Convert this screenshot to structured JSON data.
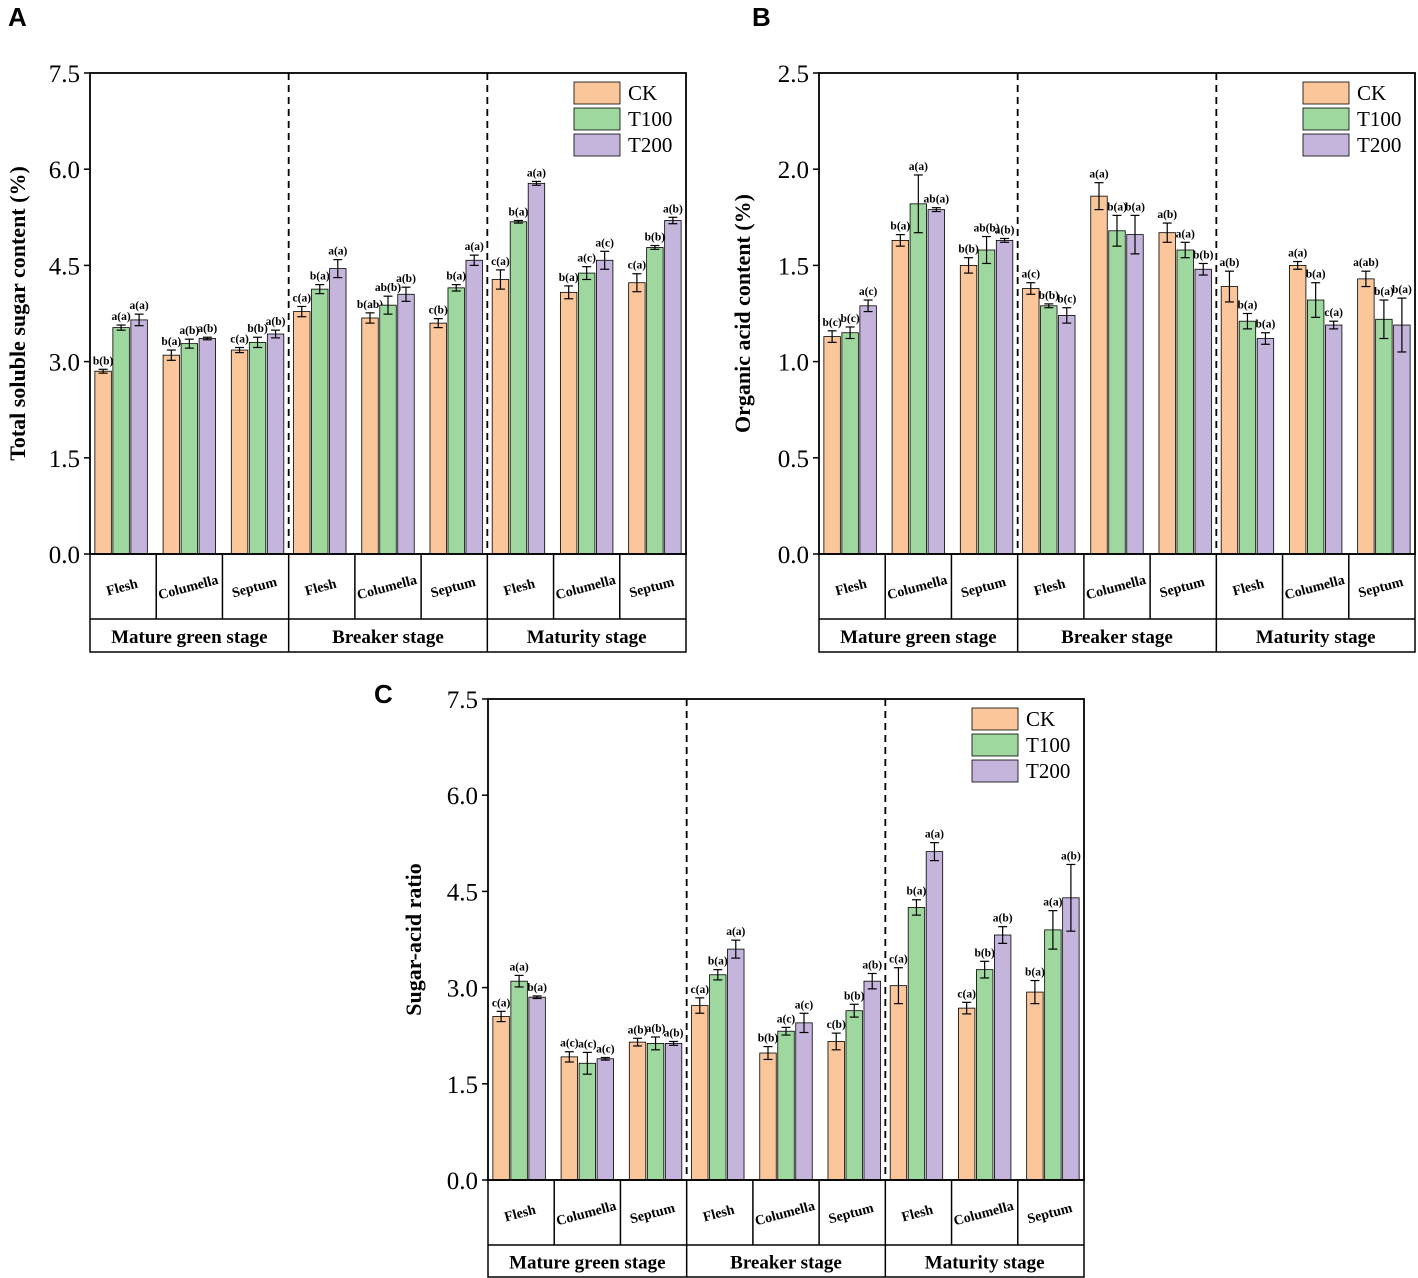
{
  "figure": {
    "colors": {
      "CK": "#fac69a",
      "T100": "#9fd89f",
      "T200": "#c5b5dd",
      "frame": "#000000"
    }
  },
  "chart_data": [
    {
      "panel": "A",
      "type": "bar",
      "ylabel": "Total soluble sugar content (%)",
      "ylim": [
        0,
        7.5
      ],
      "yticks": [
        "0.0",
        "1.5",
        "3.0",
        "4.5",
        "6.0",
        "7.5"
      ],
      "stages": [
        "Mature green stage",
        "Breaker stage",
        "Maturity stage"
      ],
      "tissues": [
        "Flesh",
        "Columella",
        "Septum"
      ],
      "legend": [
        "CK",
        "T100",
        "T200"
      ],
      "legend_position": "top-right",
      "series": [
        {
          "name": "CK",
          "values": [
            2.85,
            3.1,
            3.18,
            3.78,
            3.68,
            3.6,
            4.28,
            4.08,
            4.23
          ],
          "errors": [
            0.03,
            0.08,
            0.04,
            0.08,
            0.08,
            0.07,
            0.15,
            0.1,
            0.14
          ],
          "labels": [
            "b(b)",
            "b(a)",
            "c(a)",
            "c(a)",
            "b(ab)",
            "c(b)",
            "c(a)",
            "b(a)",
            "c(a)"
          ]
        },
        {
          "name": "T100",
          "values": [
            3.53,
            3.28,
            3.3,
            4.13,
            3.88,
            4.15,
            5.18,
            4.38,
            4.78
          ],
          "errors": [
            0.04,
            0.07,
            0.08,
            0.07,
            0.14,
            0.05,
            0.02,
            0.1,
            0.03
          ],
          "labels": [
            "a(a)",
            "a(b)",
            "b(b)",
            "b(a)",
            "ab(b)",
            "b(a)",
            "b(a)",
            "a(c)",
            "b(b)"
          ]
        },
        {
          "name": "T200",
          "values": [
            3.65,
            3.36,
            3.43,
            4.45,
            4.05,
            4.58,
            5.78,
            4.58,
            5.2
          ],
          "errors": [
            0.09,
            0.02,
            0.06,
            0.14,
            0.11,
            0.08,
            0.03,
            0.14,
            0.05
          ],
          "labels": [
            "a(a)",
            "a(b)",
            "a(b)",
            "a(a)",
            "a(b)",
            "a(a)",
            "a(a)",
            "a(c)",
            "a(b)"
          ]
        }
      ]
    },
    {
      "panel": "B",
      "type": "bar",
      "ylabel": "Organic acid content (%)",
      "ylim": [
        0,
        2.5
      ],
      "yticks": [
        "0.0",
        "0.5",
        "1.0",
        "1.5",
        "2.0",
        "2.5"
      ],
      "stages": [
        "Mature green stage",
        "Breaker stage",
        "Maturity stage"
      ],
      "tissues": [
        "Flesh",
        "Columella",
        "Septum"
      ],
      "legend": [
        "CK",
        "T100",
        "T200"
      ],
      "legend_position": "top-right",
      "series": [
        {
          "name": "CK",
          "values": [
            1.13,
            1.63,
            1.5,
            1.38,
            1.86,
            1.67,
            1.39,
            1.5,
            1.43
          ],
          "errors": [
            0.03,
            0.03,
            0.04,
            0.03,
            0.07,
            0.05,
            0.08,
            0.02,
            0.04
          ],
          "labels": [
            "b(c)",
            "b(a)",
            "b(b)",
            "a(c)",
            "a(a)",
            "a(b)",
            "a(b)",
            "a(a)",
            "a(ab)"
          ]
        },
        {
          "name": "T100",
          "values": [
            1.15,
            1.82,
            1.58,
            1.29,
            1.68,
            1.58,
            1.21,
            1.32,
            1.22
          ],
          "errors": [
            0.03,
            0.15,
            0.07,
            0.01,
            0.08,
            0.04,
            0.04,
            0.09,
            0.1
          ],
          "labels": [
            "b(c)",
            "a(a)",
            "ab(b)",
            "b(b)",
            "b(a)",
            "a(a)",
            "b(a)",
            "b(a)",
            "b(a)"
          ]
        },
        {
          "name": "T200",
          "values": [
            1.29,
            1.79,
            1.63,
            1.24,
            1.66,
            1.48,
            1.12,
            1.19,
            1.19
          ],
          "errors": [
            0.03,
            0.01,
            0.01,
            0.04,
            0.1,
            0.03,
            0.03,
            0.02,
            0.14
          ],
          "labels": [
            "a(c)",
            "ab(a)",
            "a(b)",
            "b(c)",
            "b(a)",
            "b(b)",
            "b(a)",
            "c(a)",
            "b(a)"
          ]
        }
      ]
    },
    {
      "panel": "C",
      "type": "bar",
      "ylabel": "Sugar-acid ratio",
      "ylim": [
        0,
        7.5
      ],
      "yticks": [
        "0.0",
        "1.5",
        "3.0",
        "4.5",
        "6.0",
        "7.5"
      ],
      "stages": [
        "Mature green stage",
        "Breaker stage",
        "Maturity stage"
      ],
      "tissues": [
        "Flesh",
        "Columella",
        "Septum"
      ],
      "legend": [
        "CK",
        "T100",
        "T200"
      ],
      "legend_position": "top-right",
      "series": [
        {
          "name": "CK",
          "values": [
            2.55,
            1.92,
            2.15,
            2.72,
            1.98,
            2.16,
            3.03,
            2.68,
            2.93
          ],
          "errors": [
            0.08,
            0.08,
            0.06,
            0.12,
            0.1,
            0.13,
            0.28,
            0.09,
            0.18
          ],
          "labels": [
            "c(a)",
            "a(c)",
            "a(b)",
            "c(a)",
            "b(b)",
            "c(b)",
            "c(a)",
            "c(a)",
            "b(a)"
          ]
        },
        {
          "name": "T100",
          "values": [
            3.1,
            1.82,
            2.13,
            3.2,
            2.32,
            2.64,
            4.25,
            3.28,
            3.9
          ],
          "errors": [
            0.09,
            0.17,
            0.1,
            0.08,
            0.06,
            0.1,
            0.12,
            0.13,
            0.3
          ],
          "labels": [
            "a(a)",
            "a(c)",
            "a(b)",
            "b(a)",
            "a(c)",
            "b(b)",
            "b(a)",
            "b(b)",
            "a(a)"
          ]
        },
        {
          "name": "T200",
          "values": [
            2.85,
            1.89,
            2.13,
            3.6,
            2.45,
            3.1,
            5.12,
            3.82,
            4.4
          ],
          "errors": [
            0.02,
            0.02,
            0.03,
            0.14,
            0.15,
            0.12,
            0.14,
            0.13,
            0.52
          ],
          "labels": [
            "b(a)",
            "a(c)",
            "a(b)",
            "a(a)",
            "a(c)",
            "a(b)",
            "a(a)",
            "a(b)",
            "a(b)"
          ]
        }
      ]
    }
  ]
}
